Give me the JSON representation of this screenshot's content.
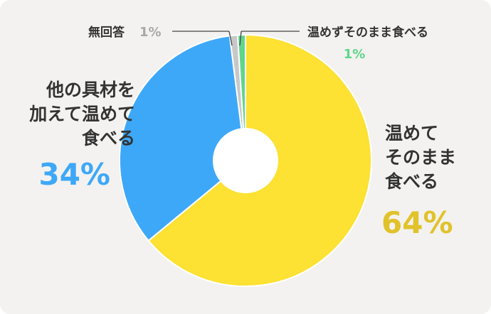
{
  "chart_data": {
    "type": "pie",
    "categories": [
      "温めてそのまま食べる",
      "他の具材を加えて温めて食べる",
      "無回答",
      "温めずそのまま食べる"
    ],
    "values": [
      64,
      34,
      1,
      1
    ],
    "unit": "%",
    "colors": [
      "#fde133",
      "#3ea8f8",
      "#c8c8c8",
      "#5fd68a"
    ],
    "label_colors": [
      "#e1c22a",
      "#3ea8f8",
      "#a8a8a8",
      "#5fd68a"
    ],
    "hole_color": "#ffffff",
    "labels": {
      "warm_as_is": {
        "lines": [
          "温めて",
          "そのまま",
          "食べる"
        ],
        "pct": "64%"
      },
      "with_ingredients": {
        "lines": [
          "他の具材を",
          "加えて温めて",
          "食べる"
        ],
        "pct": "34%"
      },
      "no_answer": {
        "name": "無回答",
        "pct": "1%"
      },
      "no_heat": {
        "name": "温めずそのまま食べる",
        "pct": "1%"
      }
    }
  }
}
